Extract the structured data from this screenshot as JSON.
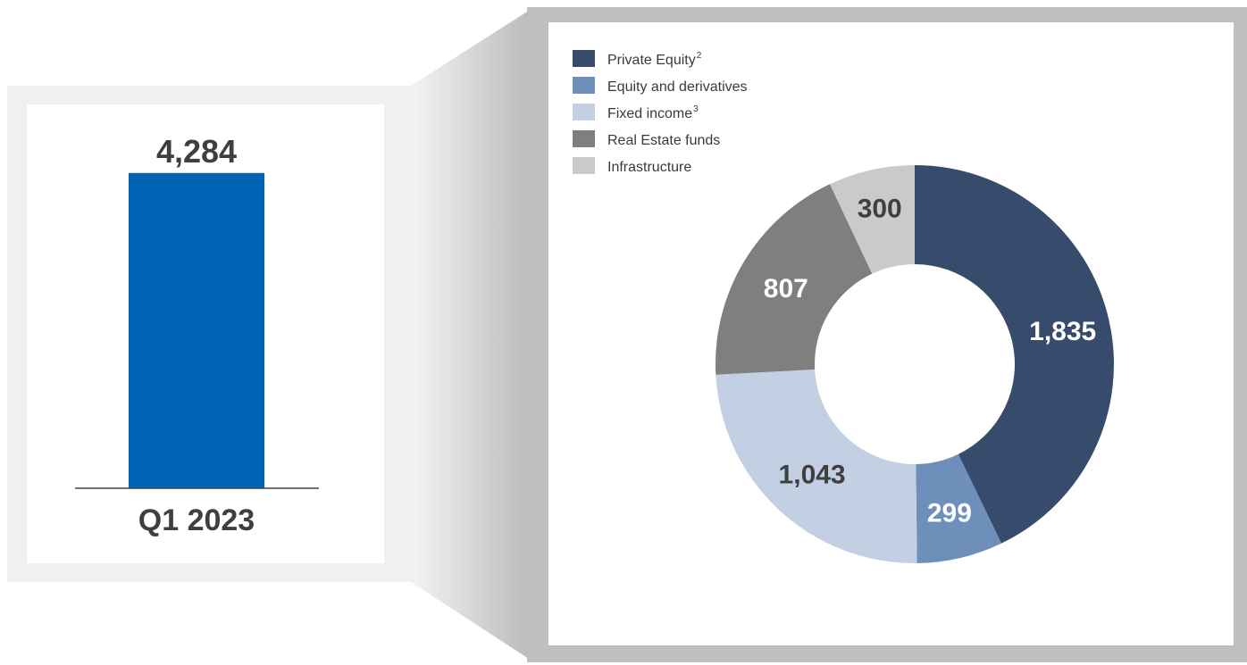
{
  "colors": {
    "bar": "#0064b4",
    "private_equity": "#374c6c",
    "equity_derivatives": "#6f8fbb",
    "fixed_income": "#c3cfe2",
    "real_estate": "#7f7f7f",
    "infrastructure": "#cacaca",
    "label_dark": "#3f3f3f",
    "label_light": "#ffffff"
  },
  "chart_data": [
    {
      "type": "bar",
      "categories": [
        "Q1 2023"
      ],
      "values": [
        4284
      ],
      "value_labels": [
        "4,284"
      ],
      "ylim": [
        0,
        5300
      ]
    },
    {
      "type": "pie",
      "donut": true,
      "legend_placement": "top-left",
      "slices": [
        {
          "name": "Private Equity",
          "sup": "2",
          "value": 1835,
          "label": "1,835",
          "color_key": "private_equity",
          "label_color": "label_light"
        },
        {
          "name": "Equity and derivatives",
          "sup": "",
          "value": 299,
          "label": "299",
          "color_key": "equity_derivatives",
          "label_color": "label_light"
        },
        {
          "name": "Fixed income",
          "sup": "3",
          "value": 1043,
          "label": "1,043",
          "color_key": "fixed_income",
          "label_color": "label_dark"
        },
        {
          "name": "Real Estate funds",
          "sup": "",
          "value": 807,
          "label": "807",
          "color_key": "real_estate",
          "label_color": "label_light"
        },
        {
          "name": "Infrastructure",
          "sup": "",
          "value": 300,
          "label": "300",
          "color_key": "infrastructure",
          "label_color": "label_dark"
        }
      ]
    }
  ]
}
